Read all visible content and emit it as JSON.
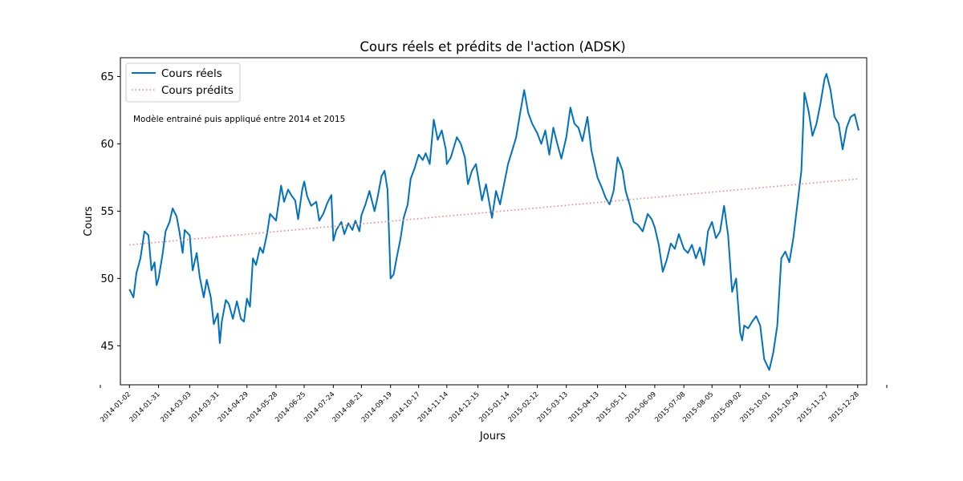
{
  "chart_data": {
    "type": "line",
    "title": "Cours réels et prédits de l'action (ADSK)",
    "xlabel": "Jours",
    "ylabel": "Cours",
    "x_range": [
      "2013-12-24",
      "2016-01-06"
    ],
    "ylim": [
      42.1,
      66.4
    ],
    "yticks": [
      45,
      50,
      55,
      60,
      65
    ],
    "grid": false,
    "legend_position": "top-left",
    "annotation": "Modèle entrainé puis appliqué entre 2014 et 2015",
    "x_tick_labels": [
      "2014-01-02",
      "2014-01-31",
      "2014-03-03",
      "2014-03-31",
      "2014-04-29",
      "2014-05-28",
      "2014-06-25",
      "2014-07-24",
      "2014-08-21",
      "2014-09-19",
      "2014-10-17",
      "2014-11-14",
      "2014-12-15",
      "2015-01-14",
      "2015-02-12",
      "2015-03-13",
      "2015-04-13",
      "2015-05-11",
      "2015-06-09",
      "2015-07-08",
      "2015-08-05",
      "2015-09-02",
      "2015-10-01",
      "2015-10-29",
      "2015-11-27",
      "2015-12-28"
    ],
    "series": [
      {
        "name": "Cours réels",
        "color": "#0072BD",
        "style": "solid",
        "points": [
          [
            "2014-01-02",
            49.2
          ],
          [
            "2014-01-06",
            48.6
          ],
          [
            "2014-01-09",
            50.4
          ],
          [
            "2014-01-13",
            51.5
          ],
          [
            "2014-01-17",
            53.5
          ],
          [
            "2014-01-21",
            53.2
          ],
          [
            "2014-01-24",
            50.6
          ],
          [
            "2014-01-27",
            51.2
          ],
          [
            "2014-01-29",
            49.5
          ],
          [
            "2014-01-31",
            50.0
          ],
          [
            "2014-02-04",
            51.8
          ],
          [
            "2014-02-07",
            53.5
          ],
          [
            "2014-02-11",
            54.2
          ],
          [
            "2014-02-14",
            55.2
          ],
          [
            "2014-02-18",
            54.6
          ],
          [
            "2014-02-21",
            53.4
          ],
          [
            "2014-02-24",
            51.9
          ],
          [
            "2014-02-26",
            53.6
          ],
          [
            "2014-03-03",
            53.2
          ],
          [
            "2014-03-06",
            50.6
          ],
          [
            "2014-03-10",
            51.9
          ],
          [
            "2014-03-13",
            50.1
          ],
          [
            "2014-03-17",
            48.6
          ],
          [
            "2014-03-20",
            49.9
          ],
          [
            "2014-03-24",
            48.6
          ],
          [
            "2014-03-27",
            46.6
          ],
          [
            "2014-03-31",
            47.4
          ],
          [
            "2014-04-02",
            45.2
          ],
          [
            "2014-04-04",
            46.8
          ],
          [
            "2014-04-08",
            48.4
          ],
          [
            "2014-04-11",
            48.1
          ],
          [
            "2014-04-15",
            47.0
          ],
          [
            "2014-04-19",
            48.3
          ],
          [
            "2014-04-23",
            47.0
          ],
          [
            "2014-04-26",
            46.8
          ],
          [
            "2014-04-29",
            48.5
          ],
          [
            "2014-05-02",
            47.9
          ],
          [
            "2014-05-05",
            51.5
          ],
          [
            "2014-05-08",
            51.0
          ],
          [
            "2014-05-12",
            52.3
          ],
          [
            "2014-05-15",
            51.9
          ],
          [
            "2014-05-19",
            53.3
          ],
          [
            "2014-05-22",
            54.8
          ],
          [
            "2014-05-28",
            54.3
          ],
          [
            "2014-06-02",
            56.9
          ],
          [
            "2014-06-05",
            55.7
          ],
          [
            "2014-06-09",
            56.6
          ],
          [
            "2014-06-12",
            56.2
          ],
          [
            "2014-06-16",
            55.8
          ],
          [
            "2014-06-19",
            54.4
          ],
          [
            "2014-06-23",
            56.6
          ],
          [
            "2014-06-25",
            57.2
          ],
          [
            "2014-06-28",
            56.1
          ],
          [
            "2014-07-02",
            55.4
          ],
          [
            "2014-07-07",
            55.7
          ],
          [
            "2014-07-10",
            54.3
          ],
          [
            "2014-07-14",
            54.8
          ],
          [
            "2014-07-18",
            55.6
          ],
          [
            "2014-07-22",
            56.2
          ],
          [
            "2014-07-24",
            52.8
          ],
          [
            "2014-07-27",
            53.6
          ],
          [
            "2014-08-01",
            54.2
          ],
          [
            "2014-08-04",
            53.3
          ],
          [
            "2014-08-08",
            54.1
          ],
          [
            "2014-08-12",
            53.6
          ],
          [
            "2014-08-15",
            54.3
          ],
          [
            "2014-08-19",
            53.5
          ],
          [
            "2014-08-21",
            54.7
          ],
          [
            "2014-08-25",
            55.5
          ],
          [
            "2014-08-29",
            56.5
          ],
          [
            "2014-09-03",
            55.0
          ],
          [
            "2014-09-06",
            56.0
          ],
          [
            "2014-09-10",
            57.6
          ],
          [
            "2014-09-13",
            58.0
          ],
          [
            "2014-09-16",
            56.6
          ],
          [
            "2014-09-19",
            50.0
          ],
          [
            "2014-09-22",
            50.3
          ],
          [
            "2014-09-25",
            51.5
          ],
          [
            "2014-09-29",
            53.0
          ],
          [
            "2014-10-02",
            54.5
          ],
          [
            "2014-10-06",
            55.5
          ],
          [
            "2014-10-09",
            57.4
          ],
          [
            "2014-10-13",
            58.2
          ],
          [
            "2014-10-17",
            59.2
          ],
          [
            "2014-10-21",
            58.8
          ],
          [
            "2014-10-24",
            59.3
          ],
          [
            "2014-10-28",
            58.5
          ],
          [
            "2014-11-01",
            61.8
          ],
          [
            "2014-11-05",
            60.3
          ],
          [
            "2014-11-09",
            61.0
          ],
          [
            "2014-11-13",
            59.6
          ],
          [
            "2014-11-14",
            58.5
          ],
          [
            "2014-11-18",
            59.0
          ],
          [
            "2014-11-24",
            60.5
          ],
          [
            "2014-11-28",
            60.0
          ],
          [
            "2014-12-02",
            59.0
          ],
          [
            "2014-12-05",
            57.0
          ],
          [
            "2014-12-09",
            58.0
          ],
          [
            "2014-12-13",
            58.5
          ],
          [
            "2014-12-15",
            57.6
          ],
          [
            "2014-12-19",
            55.8
          ],
          [
            "2014-12-23",
            57.0
          ],
          [
            "2014-12-29",
            54.5
          ],
          [
            "2015-01-02",
            56.5
          ],
          [
            "2015-01-06",
            55.5
          ],
          [
            "2015-01-10",
            57.0
          ],
          [
            "2015-01-14",
            58.5
          ],
          [
            "2015-01-18",
            59.5
          ],
          [
            "2015-01-22",
            60.5
          ],
          [
            "2015-01-26",
            62.3
          ],
          [
            "2015-01-30",
            64.0
          ],
          [
            "2015-02-03",
            62.3
          ],
          [
            "2015-02-07",
            61.5
          ],
          [
            "2015-02-12",
            60.8
          ],
          [
            "2015-02-16",
            60.0
          ],
          [
            "2015-02-20",
            61.0
          ],
          [
            "2015-02-24",
            59.2
          ],
          [
            "2015-02-28",
            61.2
          ],
          [
            "2015-03-04",
            60.0
          ],
          [
            "2015-03-08",
            58.9
          ],
          [
            "2015-03-13",
            60.5
          ],
          [
            "2015-03-17",
            62.7
          ],
          [
            "2015-03-21",
            61.5
          ],
          [
            "2015-03-25",
            61.2
          ],
          [
            "2015-03-29",
            60.2
          ],
          [
            "2015-04-03",
            62.0
          ],
          [
            "2015-04-07",
            59.5
          ],
          [
            "2015-04-13",
            57.5
          ],
          [
            "2015-04-17",
            56.8
          ],
          [
            "2015-04-21",
            56.0
          ],
          [
            "2015-04-25",
            55.5
          ],
          [
            "2015-04-29",
            56.5
          ],
          [
            "2015-05-03",
            59.0
          ],
          [
            "2015-05-08",
            58.0
          ],
          [
            "2015-05-11",
            56.5
          ],
          [
            "2015-05-15",
            55.5
          ],
          [
            "2015-05-19",
            54.2
          ],
          [
            "2015-05-23",
            54.0
          ],
          [
            "2015-05-28",
            53.5
          ],
          [
            "2015-06-02",
            54.8
          ],
          [
            "2015-06-06",
            54.4
          ],
          [
            "2015-06-09",
            53.8
          ],
          [
            "2015-06-13",
            52.5
          ],
          [
            "2015-06-17",
            50.5
          ],
          [
            "2015-06-21",
            51.4
          ],
          [
            "2015-06-25",
            52.6
          ],
          [
            "2015-06-29",
            52.2
          ],
          [
            "2015-07-03",
            53.3
          ],
          [
            "2015-07-08",
            52.2
          ],
          [
            "2015-07-12",
            51.9
          ],
          [
            "2015-07-16",
            52.5
          ],
          [
            "2015-07-20",
            51.5
          ],
          [
            "2015-07-24",
            52.3
          ],
          [
            "2015-07-28",
            51.0
          ],
          [
            "2015-08-01",
            53.5
          ],
          [
            "2015-08-05",
            54.2
          ],
          [
            "2015-08-09",
            53.0
          ],
          [
            "2015-08-13",
            53.5
          ],
          [
            "2015-08-17",
            55.4
          ],
          [
            "2015-08-21",
            53.2
          ],
          [
            "2015-08-25",
            49.0
          ],
          [
            "2015-08-29",
            50.0
          ],
          [
            "2015-09-02",
            46.0
          ],
          [
            "2015-09-04",
            45.4
          ],
          [
            "2015-09-06",
            46.5
          ],
          [
            "2015-09-10",
            46.3
          ],
          [
            "2015-09-14",
            46.8
          ],
          [
            "2015-09-18",
            47.2
          ],
          [
            "2015-09-22",
            46.5
          ],
          [
            "2015-09-26",
            44.0
          ],
          [
            "2015-10-01",
            43.2
          ],
          [
            "2015-10-05",
            44.5
          ],
          [
            "2015-10-09",
            46.5
          ],
          [
            "2015-10-13",
            51.5
          ],
          [
            "2015-10-17",
            52.0
          ],
          [
            "2015-10-21",
            51.2
          ],
          [
            "2015-10-25",
            53.0
          ],
          [
            "2015-10-29",
            55.5
          ],
          [
            "2015-11-02",
            58.0
          ],
          [
            "2015-11-05",
            63.8
          ],
          [
            "2015-11-09",
            62.5
          ],
          [
            "2015-11-13",
            60.6
          ],
          [
            "2015-11-17",
            61.5
          ],
          [
            "2015-11-21",
            63.0
          ],
          [
            "2015-11-25",
            64.8
          ],
          [
            "2015-11-27",
            65.2
          ],
          [
            "2015-12-01",
            64.0
          ],
          [
            "2015-12-05",
            62.0
          ],
          [
            "2015-12-09",
            61.5
          ],
          [
            "2015-12-13",
            59.6
          ],
          [
            "2015-12-17",
            61.2
          ],
          [
            "2015-12-21",
            62.0
          ],
          [
            "2015-12-25",
            62.2
          ],
          [
            "2015-12-29",
            61.0
          ]
        ]
      },
      {
        "name": "Cours prédits",
        "color": "#F08080",
        "style": "dotted",
        "points": [
          [
            "2014-01-02",
            52.5
          ],
          [
            "2015-12-29",
            57.4
          ]
        ]
      }
    ]
  }
}
